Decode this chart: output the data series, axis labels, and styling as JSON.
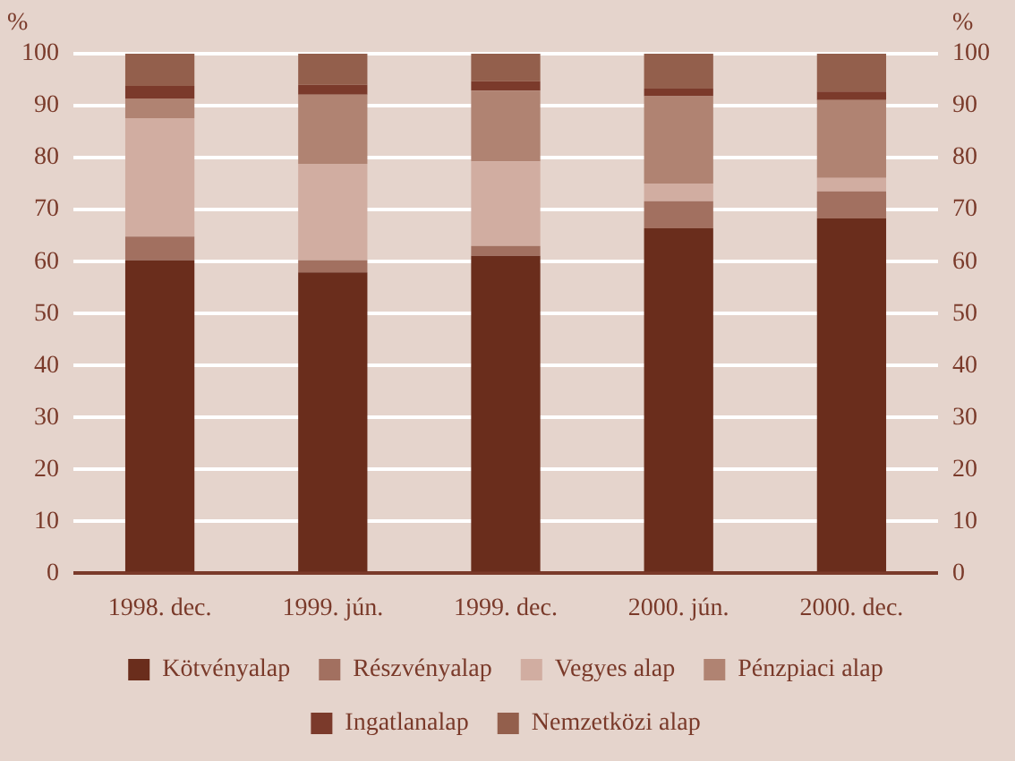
{
  "chart_data": {
    "type": "bar",
    "stacked": true,
    "ylabel": "%",
    "y2label": "%",
    "categories": [
      "1998. dec.",
      "1999. jún.",
      "1999. dec.",
      "2000. jún.",
      "2000. dec."
    ],
    "series": [
      {
        "name": "Kötvényalap",
        "color": "#6a2d1c",
        "values": [
          60.3,
          57.9,
          61.1,
          66.4,
          68.3
        ]
      },
      {
        "name": "Részvényalap",
        "color": "#a27060",
        "values": [
          4.5,
          2.4,
          1.9,
          5.2,
          5.2
        ]
      },
      {
        "name": "Vegyes alap",
        "color": "#d1ada1",
        "values": [
          22.8,
          18.5,
          16.3,
          3.4,
          2.6
        ]
      },
      {
        "name": "Pénzpiaci alap",
        "color": "#b08372",
        "values": [
          3.8,
          13.3,
          13.6,
          16.8,
          15.0
        ]
      },
      {
        "name": "Ingatlanalap",
        "color": "#7b3a2b",
        "values": [
          2.4,
          1.9,
          1.8,
          1.5,
          1.6
        ]
      },
      {
        "name": "Nemzetközi alap",
        "color": "#935f4c",
        "values": [
          6.2,
          6.0,
          5.3,
          6.7,
          7.3
        ]
      }
    ],
    "ylim": [
      0,
      100
    ],
    "yticks": [
      0,
      10,
      20,
      30,
      40,
      50,
      60,
      70,
      80,
      90,
      100
    ],
    "y2lim": [
      0,
      100
    ],
    "y2ticks": [
      0,
      10,
      20,
      30,
      40,
      50,
      60,
      70,
      80,
      90,
      100
    ],
    "grid": "y",
    "legend": "bottom"
  }
}
